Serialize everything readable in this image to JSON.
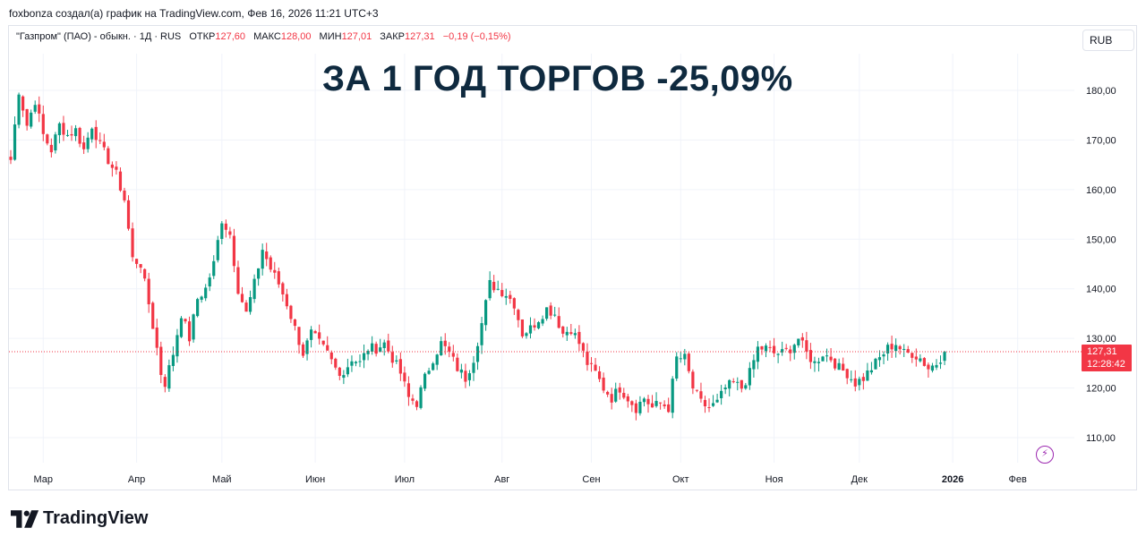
{
  "header": {
    "credit": "foxbonza создал(а) график на TradingView.com, Фев 16, 2026 11:21 UTC+3"
  },
  "legend": {
    "symbol": "\"Газпром\" (ПАО) - обыкн. · 1Д · RUS",
    "open_label": "ОТКР",
    "open": "127,60",
    "high_label": "МАКС",
    "high": "128,00",
    "low_label": "МИН",
    "low": "127,01",
    "close_label": "ЗАКР",
    "close": "127,31",
    "change": "−0,19 (−0,15%)"
  },
  "headline": "ЗА 1 ГОД ТОРГОВ -25,09%",
  "currency_button": "RUB",
  "footer": {
    "brand": "TradingView"
  },
  "icons": {
    "brand_logo": "tradingview-logo-icon",
    "alert": "lightning-icon"
  },
  "colors": {
    "up": "#089981",
    "down": "#f23645",
    "headline": "#0f2a3f",
    "alert": "#9c27b0"
  },
  "chart_data": {
    "type": "candlestick",
    "ylim": [
      102,
      188
    ],
    "y_ticks": [
      {
        "value": 180,
        "label": "180,00"
      },
      {
        "value": 170,
        "label": "170,00"
      },
      {
        "value": 160,
        "label": "160,00"
      },
      {
        "value": 150,
        "label": "150,00"
      },
      {
        "value": 140,
        "label": "140,00"
      },
      {
        "value": 130,
        "label": "130,00"
      },
      {
        "value": 120,
        "label": "120,00"
      },
      {
        "value": 110,
        "label": "110,00"
      }
    ],
    "x_ticks": [
      {
        "label": "Мар",
        "index": 8
      },
      {
        "label": "Апр",
        "index": 31
      },
      {
        "label": "Май",
        "index": 52
      },
      {
        "label": "Июн",
        "index": 75
      },
      {
        "label": "Июл",
        "index": 97
      },
      {
        "label": "Авг",
        "index": 121
      },
      {
        "label": "Сен",
        "index": 143
      },
      {
        "label": "Окт",
        "index": 165
      },
      {
        "label": "Ноя",
        "index": 188
      },
      {
        "label": "Дек",
        "index": 209
      },
      {
        "label": "2026",
        "index": 232,
        "bold": true
      },
      {
        "label": "Фев",
        "index": 248
      }
    ],
    "last_price": {
      "value": 127.31,
      "label": "127,31",
      "countdown": "12:28:42"
    },
    "anchors": [
      [
        0,
        166
      ],
      [
        2,
        180
      ],
      [
        4,
        173
      ],
      [
        6,
        178
      ],
      [
        8,
        171
      ],
      [
        10,
        168
      ],
      [
        12,
        173
      ],
      [
        14,
        171
      ],
      [
        16,
        172
      ],
      [
        18,
        168
      ],
      [
        20,
        173
      ],
      [
        22,
        169
      ],
      [
        24,
        166
      ],
      [
        26,
        163
      ],
      [
        28,
        158
      ],
      [
        30,
        146
      ],
      [
        32,
        145
      ],
      [
        34,
        137
      ],
      [
        36,
        128
      ],
      [
        37,
        123
      ],
      [
        38,
        121
      ],
      [
        40,
        127
      ],
      [
        42,
        135
      ],
      [
        44,
        130
      ],
      [
        46,
        138
      ],
      [
        48,
        140
      ],
      [
        50,
        145
      ],
      [
        52,
        154
      ],
      [
        54,
        151
      ],
      [
        56,
        140
      ],
      [
        58,
        135
      ],
      [
        60,
        141
      ],
      [
        62,
        148
      ],
      [
        64,
        144
      ],
      [
        66,
        141
      ],
      [
        68,
        137
      ],
      [
        70,
        132
      ],
      [
        72,
        127
      ],
      [
        74,
        131
      ],
      [
        76,
        129
      ],
      [
        78,
        127
      ],
      [
        80,
        124
      ],
      [
        82,
        123
      ],
      [
        84,
        126
      ],
      [
        86,
        125
      ],
      [
        88,
        128
      ],
      [
        90,
        128
      ],
      [
        92,
        129
      ],
      [
        94,
        126
      ],
      [
        96,
        123
      ],
      [
        98,
        118
      ],
      [
        100,
        117
      ],
      [
        102,
        122
      ],
      [
        104,
        126
      ],
      [
        106,
        129
      ],
      [
        108,
        127
      ],
      [
        110,
        124
      ],
      [
        112,
        122
      ],
      [
        114,
        126
      ],
      [
        116,
        133
      ],
      [
        118,
        141
      ],
      [
        120,
        140
      ],
      [
        122,
        139
      ],
      [
        124,
        137
      ],
      [
        126,
        131
      ],
      [
        128,
        132
      ],
      [
        130,
        134
      ],
      [
        132,
        136
      ],
      [
        134,
        135
      ],
      [
        136,
        131
      ],
      [
        138,
        132
      ],
      [
        140,
        129
      ],
      [
        142,
        125
      ],
      [
        144,
        123
      ],
      [
        146,
        120
      ],
      [
        148,
        118
      ],
      [
        150,
        120
      ],
      [
        152,
        118
      ],
      [
        154,
        116
      ],
      [
        156,
        118
      ],
      [
        158,
        116
      ],
      [
        160,
        117
      ],
      [
        162,
        116
      ],
      [
        164,
        126
      ],
      [
        166,
        126
      ],
      [
        168,
        120
      ],
      [
        170,
        117
      ],
      [
        172,
        116
      ],
      [
        174,
        117
      ],
      [
        176,
        120
      ],
      [
        178,
        121
      ],
      [
        180,
        120
      ],
      [
        182,
        123
      ],
      [
        184,
        128
      ],
      [
        186,
        128
      ],
      [
        188,
        127
      ],
      [
        190,
        127
      ],
      [
        192,
        128
      ],
      [
        194,
        130
      ],
      [
        196,
        127
      ],
      [
        198,
        125
      ],
      [
        200,
        127
      ],
      [
        202,
        126
      ],
      [
        204,
        124
      ],
      [
        206,
        123
      ],
      [
        208,
        121
      ],
      [
        210,
        122
      ],
      [
        212,
        124
      ],
      [
        214,
        126
      ],
      [
        216,
        128
      ],
      [
        218,
        129
      ],
      [
        220,
        127
      ],
      [
        222,
        127
      ],
      [
        224,
        126
      ],
      [
        226,
        124
      ],
      [
        228,
        125
      ],
      [
        230,
        127.31
      ]
    ]
  }
}
